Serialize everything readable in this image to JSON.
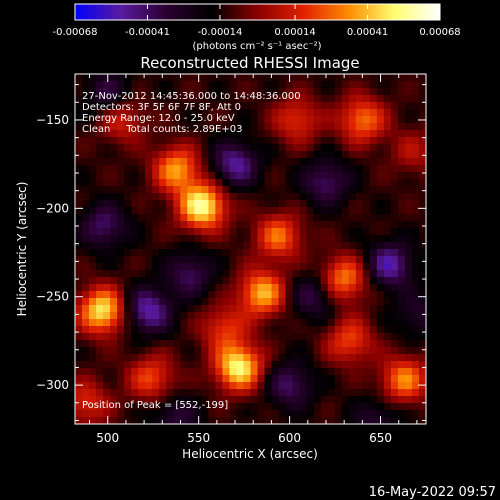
{
  "chart_data": {
    "type": "heatmap",
    "title": "Reconstructed RHESSI Image",
    "xlabel": "Heliocentric X (arcsec)",
    "ylabel": "Heliocentric Y (arcsec)",
    "xlim": [
      482,
      675
    ],
    "ylim": [
      -322,
      -124
    ],
    "x_ticks": [
      500,
      550,
      600,
      650
    ],
    "y_ticks": [
      -150,
      -200,
      -250,
      -300
    ],
    "colorbar": {
      "ticks": [
        "-0.00068",
        "-0.00041",
        "-0.00014",
        "0.00014",
        "0.00041",
        "0.00068"
      ],
      "unit_label": "(photons cm⁻² s⁻¹ asec⁻²)",
      "range": [
        -0.00068,
        0.00068
      ],
      "colormap": "blue-purple-red-orange-yellow-white"
    },
    "annotations": [
      "27-Nov-2012 14:45:36.000 to 14:48:36.000",
      "Detectors: 3F 5F 6F 7F 8F, Att 0",
      "Energy Range: 12.0 - 25.0 keV",
      "Clean     Total counts: 2.89E+03",
      "Position of Peak = [552,-199]"
    ],
    "peak": {
      "x": 552,
      "y": -199
    },
    "sources": [
      {
        "x": 552,
        "y": -199,
        "value": 0.00068
      },
      {
        "x": 497,
        "y": -258,
        "value": 0.00062
      },
      {
        "x": 572,
        "y": -290,
        "value": 0.00065
      },
      {
        "x": 538,
        "y": -178,
        "value": 0.00048
      },
      {
        "x": 585,
        "y": -248,
        "value": 0.00052
      },
      {
        "x": 594,
        "y": -216,
        "value": 0.0004
      },
      {
        "x": 630,
        "y": -240,
        "value": 0.00044
      },
      {
        "x": 640,
        "y": -150,
        "value": 0.00042
      },
      {
        "x": 604,
        "y": -150,
        "value": 0.0003
      },
      {
        "x": 663,
        "y": -297,
        "value": 0.00044
      },
      {
        "x": 633,
        "y": -275,
        "value": 0.00034
      },
      {
        "x": 524,
        "y": -296,
        "value": 0.00034
      },
      {
        "x": 488,
        "y": -310,
        "value": 0.00028
      },
      {
        "x": 508,
        "y": -150,
        "value": 0.00026
      },
      {
        "x": 668,
        "y": -168,
        "value": 0.00018
      },
      {
        "x": 564,
        "y": -268,
        "value": 0.0003
      }
    ],
    "minima": [
      {
        "x": 522,
        "y": -258,
        "value": -0.00042
      },
      {
        "x": 570,
        "y": -175,
        "value": -0.00038
      },
      {
        "x": 655,
        "y": -232,
        "value": -0.0004
      },
      {
        "x": 498,
        "y": -210,
        "value": -0.0003
      },
      {
        "x": 545,
        "y": -237,
        "value": -0.00028
      },
      {
        "x": 620,
        "y": -185,
        "value": -0.0003
      },
      {
        "x": 613,
        "y": -250,
        "value": -0.00026
      },
      {
        "x": 600,
        "y": -300,
        "value": -0.0003
      },
      {
        "x": 500,
        "y": -135,
        "value": -0.00024
      },
      {
        "x": 537,
        "y": -318,
        "value": -0.00022
      },
      {
        "x": 648,
        "y": -320,
        "value": -0.0002
      },
      {
        "x": 670,
        "y": -260,
        "value": -0.00018
      }
    ]
  },
  "footer": {
    "timestamp": "16-May-2022 09:57"
  },
  "colors": {
    "background": "#000000",
    "text": "#ffffff",
    "colormap_stops": [
      "#0000ff",
      "#5a1aa0",
      "#2a0030",
      "#000000",
      "#8a0000",
      "#e02000",
      "#ff8c00",
      "#ffff70",
      "#ffffff"
    ]
  }
}
